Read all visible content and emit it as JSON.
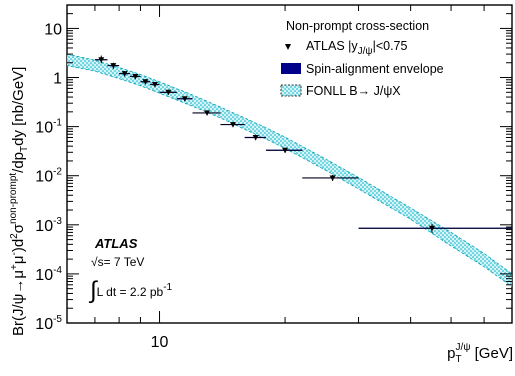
{
  "chart_data": {
    "type": "scatter",
    "title": "",
    "xlabel": "p_T^{J/ψ} [GeV]",
    "ylabel": "Br(J/ψ→μ⁺μ⁻)d²σ^{non-prompt}/dp_T dy [nb/GeV]",
    "x_scale": "log",
    "y_scale": "log",
    "xlim": [
      6,
      70
    ],
    "ylim": [
      1e-05,
      30
    ],
    "x_tick_labels": [
      "10"
    ],
    "y_tick_labels": [
      "10",
      "1",
      "10⁻¹",
      "10⁻²",
      "10⁻³",
      "10⁻⁴",
      "10⁻⁵"
    ],
    "legend": {
      "header": "Non-prompt cross-section",
      "placement": "top-right",
      "entries": [
        {
          "label": "ATLAS |y_{J/ψ}|<0.75",
          "marker": "triangle-down"
        },
        {
          "label": "Spin-alignment envelope",
          "marker": "filled-box",
          "color": "#00008b"
        },
        {
          "label": "FONLL B→ J/ψX",
          "marker": "hatched-box",
          "color": "#00b3c8"
        }
      ]
    },
    "annotations": {
      "experiment": "ATLAS",
      "energy": "√s= 7 TeV",
      "lumi": "∫L dt = 2.2 pb⁻¹"
    },
    "series": [
      {
        "name": "ATLAS |y_{J/ψ}|<0.75",
        "style": "points",
        "color": "#000000",
        "points": [
          {
            "x": 7.25,
            "xlo": 7.0,
            "xhi": 7.5,
            "y": 2.3,
            "ylo": 1.95,
            "yhi": 2.8
          },
          {
            "x": 7.75,
            "xlo": 7.5,
            "xhi": 8.0,
            "y": 1.75,
            "ylo": 1.5,
            "yhi": 2.0
          },
          {
            "x": 8.25,
            "xlo": 8.0,
            "xhi": 8.5,
            "y": 1.2,
            "ylo": 1.05,
            "yhi": 1.35
          },
          {
            "x": 8.75,
            "xlo": 8.5,
            "xhi": 9.0,
            "y": 1.05,
            "ylo": 0.93,
            "yhi": 1.18
          },
          {
            "x": 9.25,
            "xlo": 9.0,
            "xhi": 9.5,
            "y": 0.82,
            "ylo": 0.73,
            "yhi": 0.92
          },
          {
            "x": 9.75,
            "xlo": 9.5,
            "xhi": 10.0,
            "y": 0.72,
            "ylo": 0.64,
            "yhi": 0.8
          },
          {
            "x": 10.5,
            "xlo": 10.0,
            "xhi": 11.0,
            "y": 0.5,
            "ylo": 0.45,
            "yhi": 0.56
          },
          {
            "x": 11.5,
            "xlo": 11.0,
            "xhi": 12.0,
            "y": 0.37,
            "ylo": 0.33,
            "yhi": 0.41
          },
          {
            "x": 13.0,
            "xlo": 12.0,
            "xhi": 14.0,
            "y": 0.19,
            "ylo": 0.17,
            "yhi": 0.21
          },
          {
            "x": 15.0,
            "xlo": 14.0,
            "xhi": 16.0,
            "y": 0.11,
            "ylo": 0.098,
            "yhi": 0.124
          },
          {
            "x": 17.0,
            "xlo": 16.0,
            "xhi": 18.0,
            "y": 0.06,
            "ylo": 0.053,
            "yhi": 0.068
          },
          {
            "x": 20.0,
            "xlo": 18.0,
            "xhi": 22.0,
            "y": 0.033,
            "ylo": 0.029,
            "yhi": 0.037
          },
          {
            "x": 26.0,
            "xlo": 22.0,
            "xhi": 30.0,
            "y": 0.009,
            "ylo": 0.0078,
            "yhi": 0.0104
          },
          {
            "x": 45.0,
            "xlo": 30.0,
            "xhi": 70.0,
            "y": 0.00085,
            "ylo": 0.00068,
            "yhi": 0.00105
          }
        ]
      },
      {
        "name": "FONLL B→ J/ψX",
        "style": "band",
        "color": "#00b3c8",
        "x": [
          6,
          7,
          8,
          9,
          10,
          12,
          14,
          16,
          18,
          20,
          25,
          30,
          40,
          50,
          60,
          70
        ],
        "ylo": [
          1.75,
          1.35,
          0.95,
          0.68,
          0.48,
          0.26,
          0.15,
          0.088,
          0.056,
          0.036,
          0.013,
          0.0054,
          0.0013,
          0.00037,
          0.00014,
          5.5e-05
        ],
        "yhi": [
          3.0,
          2.25,
          1.6,
          1.15,
          0.82,
          0.44,
          0.25,
          0.15,
          0.095,
          0.061,
          0.022,
          0.0092,
          0.0022,
          0.0007,
          0.00026,
          0.0001
        ]
      }
    ]
  }
}
